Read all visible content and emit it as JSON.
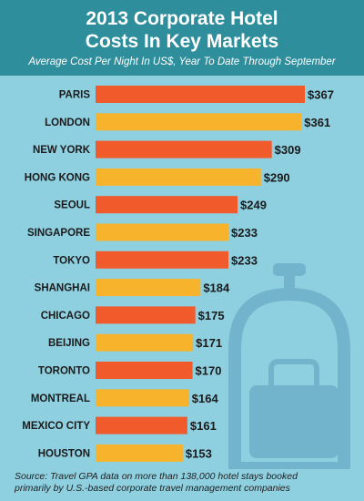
{
  "header": {
    "title_line1": "2013 Corporate Hotel",
    "title_line2": "Costs In Key Markets",
    "subtitle": "Average Cost Per Night In US$, Year To Date Through September"
  },
  "footer": {
    "source_line1": "Source: Travel GPA data on more than 138,000 hotel stays booked",
    "source_line2": "primarily by U.S.-based corporate travel management companies"
  },
  "colors": {
    "background": "#8ecfe0",
    "header": "#2f8e9c",
    "bar_orange": "#f15a2b",
    "bar_yellow": "#f7b32b",
    "illustration": "#6fb0ca"
  },
  "illustration_icon": "luggage-cart-icon",
  "chart_data": {
    "type": "bar",
    "orientation": "horizontal",
    "categories": [
      "PARIS",
      "LONDON",
      "NEW YORK",
      "HONG KONG",
      "SEOUL",
      "SINGAPORE",
      "TOKYO",
      "SHANGHAI",
      "CHICAGO",
      "BEIJING",
      "TORONTO",
      "MONTREAL",
      "MEXICO CITY",
      "HOUSTON"
    ],
    "values": [
      367,
      361,
      309,
      290,
      249,
      233,
      233,
      184,
      175,
      171,
      170,
      164,
      161,
      153
    ],
    "value_labels": [
      "$367",
      "$361",
      "$309",
      "$290",
      "$249",
      "$233",
      "$233",
      "$184",
      "$175",
      "$171",
      "$170",
      "$164",
      "$161",
      "$153"
    ],
    "bar_colors": [
      "#f15a2b",
      "#f7b32b",
      "#f15a2b",
      "#f7b32b",
      "#f15a2b",
      "#f7b32b",
      "#f15a2b",
      "#f7b32b",
      "#f15a2b",
      "#f7b32b",
      "#f15a2b",
      "#f7b32b",
      "#f15a2b",
      "#f7b32b"
    ],
    "xlim": [
      0,
      367
    ],
    "grid": false,
    "legend": "none"
  }
}
